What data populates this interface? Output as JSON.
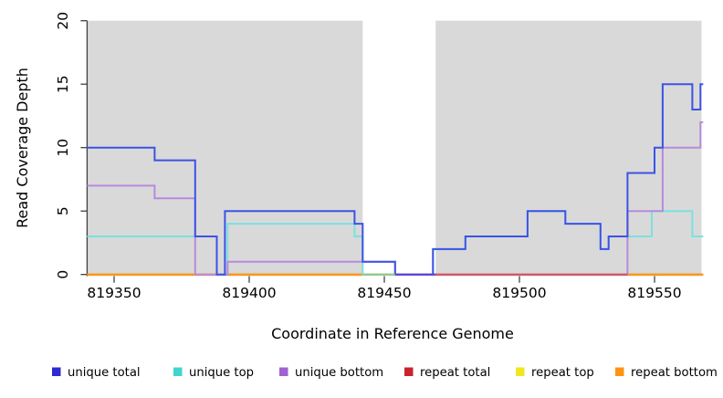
{
  "chart_data": {
    "type": "line",
    "subtype": "step",
    "title": "",
    "xlabel": "Coordinate in Reference Genome",
    "ylabel": "Read Coverage Depth",
    "x_domain": [
      819340,
      819568
    ],
    "ylim": [
      0,
      20
    ],
    "x_ticks": [
      819350,
      819400,
      819450,
      819500,
      819550
    ],
    "y_ticks": [
      0,
      5,
      10,
      15,
      20
    ],
    "grid": false,
    "legend_position": "bottom",
    "plot_bg_color": "#d9d9d9",
    "bg_white_gap_x": [
      819442,
      819469
    ],
    "series": [
      {
        "name": "unique total",
        "color": "#2b2bd0",
        "line_color": "#3d52e6",
        "steps": [
          [
            819340,
            10
          ],
          [
            819365,
            9
          ],
          [
            819380,
            3
          ],
          [
            819388,
            0
          ],
          [
            819391,
            5
          ],
          [
            819439,
            4
          ],
          [
            819442,
            1
          ],
          [
            819454,
            0
          ],
          [
            819468,
            2
          ],
          [
            819480,
            3
          ],
          [
            819503,
            5
          ],
          [
            819517,
            4
          ],
          [
            819530,
            2
          ],
          [
            819533,
            3
          ],
          [
            819540,
            8
          ],
          [
            819550,
            10
          ],
          [
            819553,
            15
          ],
          [
            819564,
            13
          ],
          [
            819567,
            15
          ]
        ]
      },
      {
        "name": "unique top",
        "color": "#40d6ce",
        "line_color": "#79e2de",
        "steps": [
          [
            819340,
            3
          ],
          [
            819388,
            0
          ],
          [
            819392,
            4
          ],
          [
            819439,
            3
          ],
          [
            819442,
            0
          ],
          [
            819468,
            2
          ],
          [
            819480,
            3
          ],
          [
            819503,
            5
          ],
          [
            819517,
            4
          ],
          [
            819530,
            2
          ],
          [
            819533,
            3
          ],
          [
            819549,
            5
          ],
          [
            819564,
            3
          ]
        ]
      },
      {
        "name": "unique bottom",
        "color": "#9f62d2",
        "line_color": "#b78add",
        "steps": [
          [
            819340,
            7
          ],
          [
            819365,
            6
          ],
          [
            819380,
            0
          ],
          [
            819392,
            1
          ],
          [
            819454,
            0
          ],
          [
            819540,
            5
          ],
          [
            819553,
            10
          ],
          [
            819567,
            12
          ]
        ]
      },
      {
        "name": "repeat total",
        "color": "#c8242e",
        "line_color": "#c8242e",
        "steps": [
          [
            819340,
            0
          ]
        ]
      },
      {
        "name": "repeat top",
        "color": "#f2e71f",
        "line_color": "#f2e71f",
        "steps": [
          [
            819340,
            0
          ]
        ]
      },
      {
        "name": "repeat bottom",
        "color": "#ff9414",
        "line_color": "#ff9414",
        "steps": [
          [
            819340,
            0
          ]
        ]
      }
    ],
    "baseline_overlay_segments": [
      {
        "from": 819442,
        "to": 819454,
        "color": "#8fca8f"
      },
      {
        "from": 819454,
        "to": 819469,
        "color": "#5d43d6"
      },
      {
        "from": 819469,
        "to": 819540,
        "color": "#d25067"
      }
    ]
  }
}
